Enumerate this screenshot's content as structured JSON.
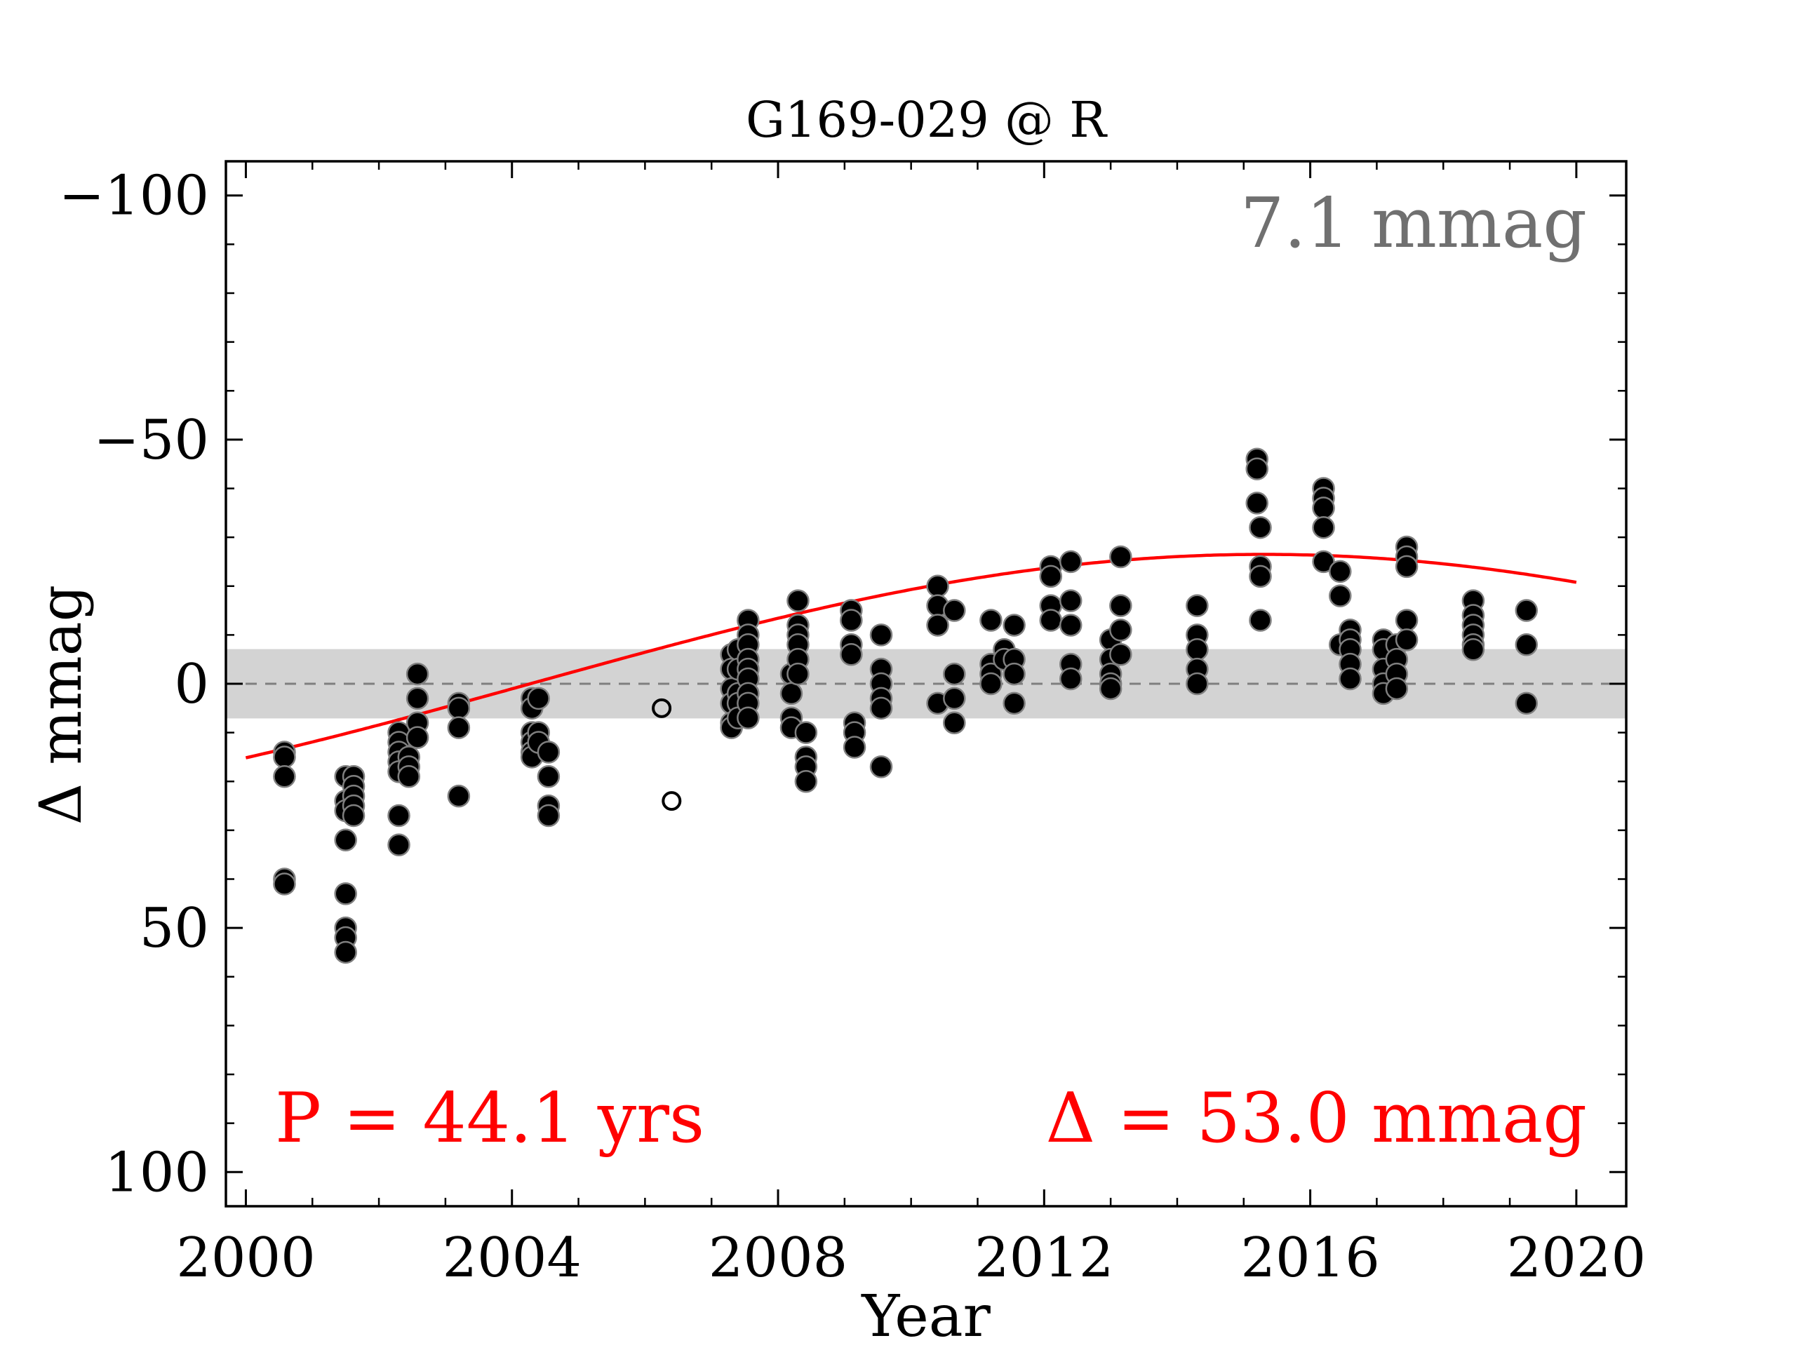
{
  "chart_data": {
    "type": "scatter",
    "title": "G169-029 @ R",
    "xlabel": "Year",
    "ylabel": "Δ  mmag",
    "xlim": [
      1999.7,
      2020.75
    ],
    "ylim": [
      107,
      -107
    ],
    "y_inverted": true,
    "xticks": [
      2000,
      2004,
      2008,
      2012,
      2016,
      2020
    ],
    "xtick_labels": [
      "2000",
      "2004",
      "2008",
      "2012",
      "2016",
      "2020"
    ],
    "yticks": [
      -100,
      -50,
      0,
      50,
      100
    ],
    "ytick_labels": [
      "−100",
      "−50",
      "0",
      "50",
      "100"
    ],
    "scatter_annotation": "7.1 mmag",
    "scatter_band": 7.1,
    "fit_annotation_period": "P = 44.1 yrs",
    "fit_annotation_amplitude": "Δ = 53.0 mmag",
    "fit": {
      "period": 44.1,
      "amplitude": 53.0,
      "x_range": [
        2000.0,
        2020.0
      ]
    },
    "colors": {
      "points": "#000000",
      "point_edge": "#7f7f7f",
      "fit": "#ff0000",
      "band": "#d3d3d3",
      "scatter_text": "#707070",
      "fit_text": "#ff0000",
      "dashed": "#7f7f7f"
    },
    "series": [
      {
        "marker": "filled",
        "points": [
          [
            2000.58,
            14
          ],
          [
            2000.58,
            15
          ],
          [
            2000.58,
            19
          ],
          [
            2000.58,
            40
          ],
          [
            2000.58,
            41
          ],
          [
            2001.5,
            19
          ],
          [
            2001.5,
            24
          ],
          [
            2001.5,
            26
          ],
          [
            2001.5,
            32
          ],
          [
            2001.5,
            43
          ],
          [
            2001.5,
            50
          ],
          [
            2001.5,
            52
          ],
          [
            2001.5,
            55
          ],
          [
            2001.62,
            19
          ],
          [
            2001.62,
            21
          ],
          [
            2001.62,
            23
          ],
          [
            2001.62,
            25
          ],
          [
            2001.62,
            27
          ],
          [
            2002.3,
            10
          ],
          [
            2002.3,
            12
          ],
          [
            2002.3,
            14
          ],
          [
            2002.3,
            16
          ],
          [
            2002.3,
            18
          ],
          [
            2002.3,
            27
          ],
          [
            2002.3,
            33
          ],
          [
            2002.45,
            15
          ],
          [
            2002.45,
            17
          ],
          [
            2002.45,
            19
          ],
          [
            2002.58,
            -2
          ],
          [
            2002.58,
            3
          ],
          [
            2002.58,
            8
          ],
          [
            2002.58,
            11
          ],
          [
            2003.2,
            4
          ],
          [
            2003.2,
            5
          ],
          [
            2003.2,
            9
          ],
          [
            2003.2,
            23
          ],
          [
            2004.3,
            3
          ],
          [
            2004.3,
            5
          ],
          [
            2004.3,
            10
          ],
          [
            2004.3,
            12
          ],
          [
            2004.3,
            14
          ],
          [
            2004.3,
            15
          ],
          [
            2004.4,
            3
          ],
          [
            2004.4,
            10
          ],
          [
            2004.4,
            12
          ],
          [
            2004.55,
            14
          ],
          [
            2004.55,
            19
          ],
          [
            2004.55,
            25
          ],
          [
            2004.55,
            27
          ],
          [
            2007.3,
            -6
          ],
          [
            2007.3,
            -3
          ],
          [
            2007.3,
            1
          ],
          [
            2007.3,
            4
          ],
          [
            2007.3,
            8
          ],
          [
            2007.3,
            9
          ],
          [
            2007.4,
            -7
          ],
          [
            2007.4,
            -3
          ],
          [
            2007.4,
            2
          ],
          [
            2007.4,
            4
          ],
          [
            2007.4,
            7
          ],
          [
            2007.55,
            -13
          ],
          [
            2007.55,
            -10
          ],
          [
            2007.55,
            -8
          ],
          [
            2007.55,
            -5
          ],
          [
            2007.55,
            -3
          ],
          [
            2007.55,
            -1
          ],
          [
            2007.55,
            2
          ],
          [
            2007.55,
            4
          ],
          [
            2007.55,
            7
          ],
          [
            2008.2,
            -2
          ],
          [
            2008.2,
            2
          ],
          [
            2008.2,
            7
          ],
          [
            2008.2,
            9
          ],
          [
            2008.3,
            -17
          ],
          [
            2008.3,
            -12
          ],
          [
            2008.3,
            -10
          ],
          [
            2008.3,
            -8
          ],
          [
            2008.3,
            -5
          ],
          [
            2008.3,
            -2
          ],
          [
            2008.42,
            10
          ],
          [
            2008.42,
            15
          ],
          [
            2008.42,
            17
          ],
          [
            2008.42,
            20
          ],
          [
            2009.1,
            -15
          ],
          [
            2009.1,
            -13
          ],
          [
            2009.1,
            -8
          ],
          [
            2009.1,
            -6
          ],
          [
            2009.15,
            8
          ],
          [
            2009.15,
            10
          ],
          [
            2009.15,
            13
          ],
          [
            2009.55,
            -10
          ],
          [
            2009.55,
            -3
          ],
          [
            2009.55,
            0
          ],
          [
            2009.55,
            3
          ],
          [
            2009.55,
            5
          ],
          [
            2009.55,
            17
          ],
          [
            2010.4,
            -20
          ],
          [
            2010.4,
            -16
          ],
          [
            2010.4,
            -12
          ],
          [
            2010.4,
            4
          ],
          [
            2010.65,
            -15
          ],
          [
            2010.65,
            -2
          ],
          [
            2010.65,
            3
          ],
          [
            2010.65,
            8
          ],
          [
            2011.2,
            -13
          ],
          [
            2011.2,
            -4
          ],
          [
            2011.2,
            -2
          ],
          [
            2011.2,
            0
          ],
          [
            2011.4,
            -7
          ],
          [
            2011.4,
            -5
          ],
          [
            2011.55,
            -12
          ],
          [
            2011.55,
            -5
          ],
          [
            2011.55,
            -2
          ],
          [
            2011.55,
            4
          ],
          [
            2012.1,
            -24
          ],
          [
            2012.1,
            -22
          ],
          [
            2012.1,
            -16
          ],
          [
            2012.1,
            -13
          ],
          [
            2012.4,
            -25
          ],
          [
            2012.4,
            -17
          ],
          [
            2012.4,
            -12
          ],
          [
            2012.4,
            -4
          ],
          [
            2012.4,
            -1
          ],
          [
            2013.0,
            -9
          ],
          [
            2013.0,
            -5
          ],
          [
            2013.0,
            -2
          ],
          [
            2013.0,
            0
          ],
          [
            2013.0,
            1
          ],
          [
            2013.15,
            -26
          ],
          [
            2013.15,
            -16
          ],
          [
            2013.15,
            -11
          ],
          [
            2013.15,
            -6
          ],
          [
            2014.3,
            -16
          ],
          [
            2014.3,
            -10
          ],
          [
            2014.3,
            -7
          ],
          [
            2014.3,
            -3
          ],
          [
            2014.3,
            0
          ],
          [
            2015.2,
            -46
          ],
          [
            2015.2,
            -44
          ],
          [
            2015.2,
            -37
          ],
          [
            2015.25,
            -32
          ],
          [
            2015.25,
            -24
          ],
          [
            2015.25,
            -22
          ],
          [
            2015.25,
            -13
          ],
          [
            2016.2,
            -40
          ],
          [
            2016.2,
            -38
          ],
          [
            2016.2,
            -36
          ],
          [
            2016.2,
            -32
          ],
          [
            2016.2,
            -25
          ],
          [
            2016.45,
            -23
          ],
          [
            2016.45,
            -18
          ],
          [
            2016.45,
            -8
          ],
          [
            2016.6,
            -11
          ],
          [
            2016.6,
            -9
          ],
          [
            2016.6,
            -7
          ],
          [
            2016.6,
            -4
          ],
          [
            2016.6,
            -1
          ],
          [
            2017.1,
            -9
          ],
          [
            2017.1,
            -7
          ],
          [
            2017.1,
            -3
          ],
          [
            2017.1,
            0
          ],
          [
            2017.1,
            2
          ],
          [
            2017.3,
            -8
          ],
          [
            2017.3,
            -5
          ],
          [
            2017.3,
            -2
          ],
          [
            2017.3,
            1
          ],
          [
            2017.45,
            -28
          ],
          [
            2017.45,
            -26
          ],
          [
            2017.45,
            -24
          ],
          [
            2017.45,
            -13
          ],
          [
            2017.45,
            -9
          ],
          [
            2018.45,
            -17
          ],
          [
            2018.45,
            -14
          ],
          [
            2018.45,
            -12
          ],
          [
            2018.45,
            -10
          ],
          [
            2018.45,
            -8
          ],
          [
            2018.45,
            -7
          ],
          [
            2019.25,
            -15
          ],
          [
            2019.25,
            -8
          ],
          [
            2019.25,
            4
          ]
        ]
      },
      {
        "marker": "open",
        "points": [
          [
            2006.25,
            5
          ],
          [
            2006.4,
            24
          ]
        ]
      }
    ]
  }
}
